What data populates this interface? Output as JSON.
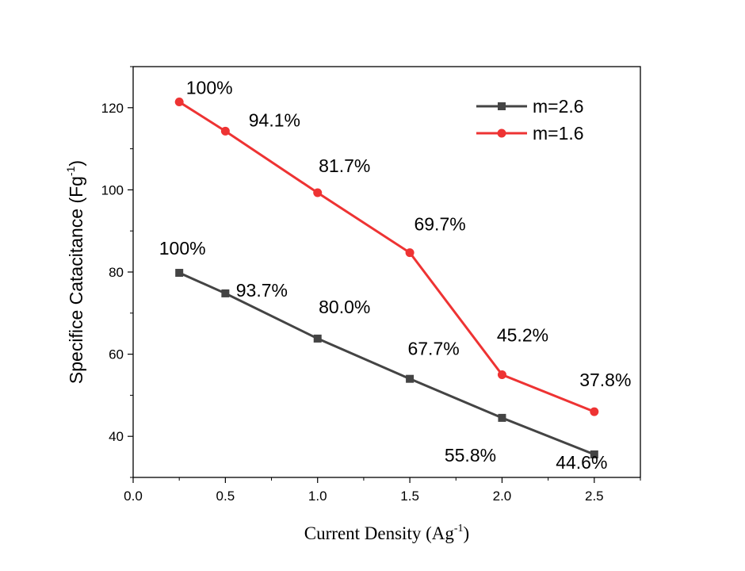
{
  "chart_data": {
    "type": "line",
    "xlabel": {
      "main": "Current Density (Ag",
      "sup": "-1",
      "end": ")"
    },
    "ylabel": {
      "main": "Specifice Catacitance (Fg",
      "sup": "-1",
      "end": ")"
    },
    "xlim": [
      0,
      2.75
    ],
    "ylim": [
      30,
      130
    ],
    "x_ticks": [
      0.0,
      0.5,
      1.0,
      1.5,
      2.0,
      2.5
    ],
    "x_tick_labels": [
      "0.0",
      "0.5",
      "1.0",
      "1.5",
      "2.0",
      "2.5"
    ],
    "y_ticks": [
      40,
      60,
      80,
      100,
      120
    ],
    "y_tick_labels": [
      "40",
      "60",
      "80",
      "100",
      "120"
    ],
    "grid": false,
    "legend_position": "top-right",
    "series": [
      {
        "name": "m=2.6",
        "color": "#444444",
        "marker": "square",
        "x": [
          0.25,
          0.5,
          1.0,
          1.5,
          2.0,
          2.5
        ],
        "y": [
          79.8,
          74.8,
          63.8,
          54.0,
          44.5,
          35.6
        ],
        "labels": [
          "100%",
          "93.7%",
          "80.0%",
          "67.7%",
          "55.8%",
          "44.6%"
        ]
      },
      {
        "name": "m=1.6",
        "color": "#ee3333",
        "marker": "circle",
        "x": [
          0.25,
          0.5,
          1.0,
          1.5,
          2.0,
          2.5
        ],
        "y": [
          121.4,
          114.3,
          99.3,
          84.7,
          55.0,
          46.0
        ],
        "labels": [
          "100%",
          "94.1%",
          "81.7%",
          "69.7%",
          "45.2%",
          "37.8%"
        ]
      }
    ]
  }
}
